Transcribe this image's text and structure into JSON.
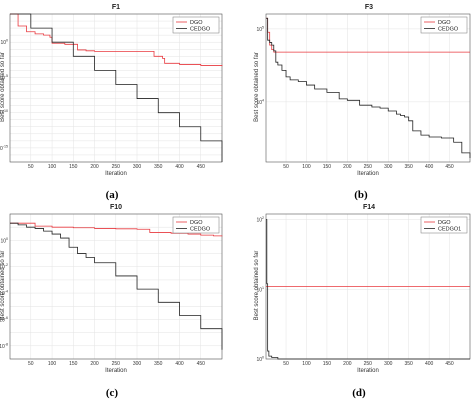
{
  "chart_data": [
    {
      "type": "line",
      "title": "F1",
      "caption": "(a)",
      "xlabel": "Iteration",
      "ylabel": "Best score obtained so far",
      "yscale": "log",
      "xlim": [
        1,
        500
      ],
      "ylim": [
        1e-17,
        10000.0
      ],
      "xticks": [
        50,
        100,
        150,
        200,
        250,
        300,
        350,
        400,
        450
      ],
      "yticks": [
        1.0,
        1e-05,
        1e-10,
        1e-15
      ],
      "ytick_labels": [
        "10^0",
        "10^-5",
        "10^-10",
        "10^-15"
      ],
      "grid": true,
      "legend_position": "top-right",
      "series": [
        {
          "name": "DGO",
          "color": "#e8393f",
          "x": [
            1,
            20,
            40,
            60,
            80,
            95,
            100,
            130,
            160,
            180,
            200,
            250,
            300,
            340,
            360,
            365,
            400,
            450,
            500
          ],
          "y": [
            10000.0,
            200,
            30,
            15,
            10,
            5,
            0.7,
            0.5,
            0.08,
            0.06,
            0.05,
            0.05,
            0.05,
            0.01,
            0.005,
            0.001,
            0.0007,
            0.0005,
            0.0004
          ]
        },
        {
          "name": "CEDGO",
          "color": "#222222",
          "x": [
            1,
            50,
            100,
            150,
            200,
            250,
            300,
            350,
            400,
            450,
            500
          ],
          "y": [
            10000.0,
            100.0,
            1.0,
            0.01,
            0.0001,
            1e-06,
            1e-08,
            1e-10,
            1e-12,
            1e-14,
            1e-17
          ]
        }
      ]
    },
    {
      "type": "line",
      "title": "F3",
      "caption": "(b)",
      "xlabel": "Iteration",
      "ylabel": "Best score obtained so far",
      "yscale": "log",
      "xlim": [
        1,
        500
      ],
      "ylim": [
        1500,
        160000
      ],
      "xticks": [
        50,
        100,
        150,
        200,
        250,
        300,
        350,
        400,
        450
      ],
      "yticks": [
        100000,
        10000
      ],
      "ytick_labels": [
        "10^5",
        "10^4"
      ],
      "grid": true,
      "legend_position": "top-right",
      "series": [
        {
          "name": "DGO",
          "color": "#e8393f",
          "x": [
            1,
            5,
            10,
            15,
            20,
            500
          ],
          "y": [
            140000,
            90000,
            60000,
            52000,
            48000,
            48000
          ]
        },
        {
          "name": "CEDGO",
          "color": "#222222",
          "x": [
            1,
            5,
            10,
            15,
            20,
            25,
            30,
            40,
            50,
            60,
            80,
            100,
            120,
            150,
            180,
            200,
            230,
            260,
            280,
            300,
            320,
            330,
            340,
            350,
            360,
            380,
            400,
            430,
            460,
            480,
            500
          ],
          "y": [
            140000,
            70000,
            65000,
            60000,
            50000,
            35000,
            32000,
            27000,
            22000,
            20000,
            19000,
            17000,
            15000,
            13500,
            11000,
            10500,
            9000,
            8500,
            8200,
            7500,
            6800,
            6500,
            6200,
            5500,
            4000,
            3500,
            3300,
            3200,
            2800,
            2000,
            1700
          ]
        }
      ]
    },
    {
      "type": "line",
      "title": "F10",
      "caption": "(c)",
      "xlabel": "Iteration",
      "ylabel": "Best score obtained so far",
      "yscale": "log",
      "xlim": [
        1,
        500
      ],
      "ylim": [
        1e-09,
        100
      ],
      "xticks": [
        50,
        100,
        150,
        200,
        250,
        300,
        350,
        400,
        450
      ],
      "yticks": [
        1.0,
        0.01,
        0.0001,
        1e-06,
        1e-08
      ],
      "ytick_labels": [
        "10^0",
        "10^-2",
        "10^-4",
        "10^-6",
        "10^-8"
      ],
      "grid": true,
      "legend_position": "top-right",
      "series": [
        {
          "name": "DGO",
          "color": "#e8393f",
          "x": [
            1,
            30,
            60,
            100,
            150,
            200,
            250,
            300,
            330,
            380,
            420,
            450,
            480,
            500
          ],
          "y": [
            20,
            20,
            12,
            10,
            9,
            8,
            7.5,
            7,
            4,
            3.5,
            3,
            2.5,
            2.2,
            2
          ]
        },
        {
          "name": "CEDGO",
          "color": "#222222",
          "x": [
            1,
            20,
            40,
            60,
            80,
            100,
            120,
            140,
            160,
            180,
            200,
            250,
            300,
            350,
            400,
            450,
            500
          ],
          "y": [
            20,
            15,
            10,
            8,
            5,
            3,
            1.5,
            0.3,
            0.1,
            0.05,
            0.02,
            0.002,
            0.0002,
            2e-05,
            2e-06,
            2e-07,
            5e-09
          ]
        }
      ]
    },
    {
      "type": "line",
      "title": "F14",
      "caption": "(d)",
      "xlabel": "Iteration",
      "ylabel": "Best score obtained so far",
      "yscale": "log",
      "xlim": [
        1,
        500
      ],
      "ylim": [
        1,
        120
      ],
      "xticks": [
        50,
        100,
        150,
        200,
        250,
        300,
        350,
        400,
        450
      ],
      "yticks": [
        100,
        10,
        1
      ],
      "ytick_labels": [
        "10^2",
        "10^1",
        "10^0"
      ],
      "grid": true,
      "legend_position": "top-right",
      "series": [
        {
          "name": "DGO",
          "color": "#e8393f",
          "x": [
            1,
            3,
            500
          ],
          "y": [
            11,
            11,
            11
          ]
        },
        {
          "name": "CEDGO1",
          "color": "#222222",
          "x": [
            1,
            3,
            5,
            8,
            15,
            30,
            500
          ],
          "y": [
            100,
            12,
            1.3,
            1.1,
            1.05,
            1.0,
            1.0
          ]
        }
      ]
    }
  ]
}
